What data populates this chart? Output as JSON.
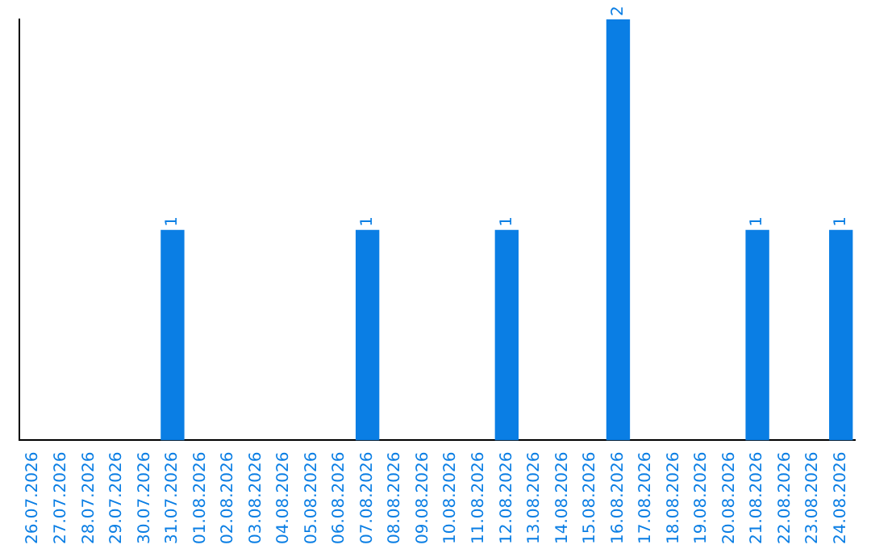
{
  "chart_data": {
    "type": "bar",
    "categories": [
      "26.07.2026",
      "27.07.2026",
      "28.07.2026",
      "29.07.2026",
      "30.07.2026",
      "31.07.2026",
      "01.08.2026",
      "02.08.2026",
      "03.08.2026",
      "04.08.2026",
      "05.08.2026",
      "06.08.2026",
      "07.08.2026",
      "08.08.2026",
      "09.08.2026",
      "10.08.2026",
      "11.08.2026",
      "12.08.2026",
      "13.08.2026",
      "14.08.2026",
      "15.08.2026",
      "16.08.2026",
      "17.08.2026",
      "18.08.2026",
      "19.08.2026",
      "20.08.2026",
      "21.08.2026",
      "22.08.2026",
      "23.08.2026",
      "24.08.2026"
    ],
    "values": [
      0,
      0,
      0,
      0,
      0,
      1,
      0,
      0,
      0,
      0,
      0,
      0,
      1,
      0,
      0,
      0,
      0,
      1,
      0,
      0,
      0,
      2,
      0,
      0,
      0,
      0,
      1,
      0,
      0,
      1
    ],
    "value_labels": [
      null,
      null,
      null,
      null,
      null,
      "1",
      null,
      null,
      null,
      null,
      null,
      null,
      "1",
      null,
      null,
      null,
      null,
      "1",
      null,
      null,
      null,
      "2",
      null,
      null,
      null,
      null,
      "1",
      null,
      null,
      "1"
    ],
    "color": "#0a7ee4",
    "tick_labels": "x",
    "grid": false,
    "legend": false
  }
}
